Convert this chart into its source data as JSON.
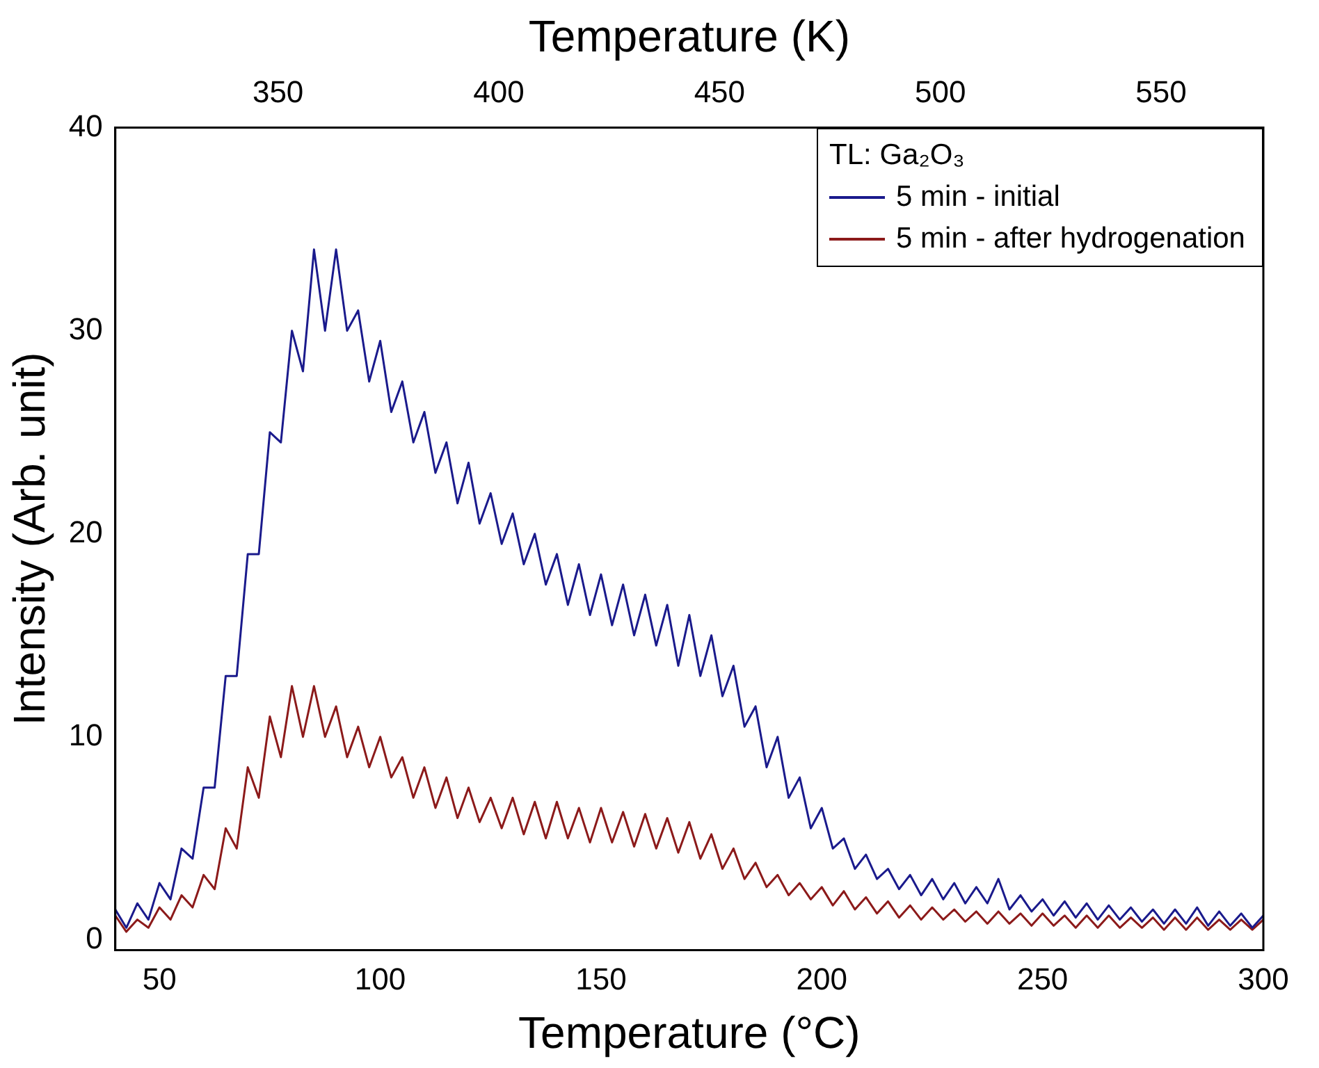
{
  "chart_data": {
    "type": "line",
    "xlabel": "Temperature (°C)",
    "x2label": "Temperature (K)",
    "ylabel": "Intensity (Arb. unit)",
    "legend_title": "TL: Ga₂O₃",
    "legend": "top right",
    "grid": false,
    "marker": "none",
    "line_style": "solid",
    "xlim": [
      40,
      300
    ],
    "xticks": [
      50,
      100,
      150,
      200,
      250,
      300
    ],
    "x2lim": [
      313.15,
      573.15
    ],
    "x2ticks": [
      350,
      400,
      450,
      500,
      550
    ],
    "ylim": [
      -0.5,
      40
    ],
    "yticks": [
      0,
      10,
      20,
      30,
      40
    ],
    "x": [
      40,
      42.5,
      45,
      47.5,
      50,
      52.5,
      55,
      57.5,
      60,
      62.5,
      65,
      67.5,
      70,
      72.5,
      75,
      77.5,
      80,
      82.5,
      85,
      87.5,
      90,
      92.5,
      95,
      97.5,
      100,
      102.5,
      105,
      107.5,
      110,
      112.5,
      115,
      117.5,
      120,
      122.5,
      125,
      127.5,
      130,
      132.5,
      135,
      137.5,
      140,
      142.5,
      145,
      147.5,
      150,
      152.5,
      155,
      157.5,
      160,
      162.5,
      165,
      167.5,
      170,
      172.5,
      175,
      177.5,
      180,
      182.5,
      185,
      187.5,
      190,
      192.5,
      195,
      197.5,
      200,
      202.5,
      205,
      207.5,
      210,
      212.5,
      215,
      217.5,
      220,
      222.5,
      225,
      227.5,
      230,
      232.5,
      235,
      237.5,
      240,
      242.5,
      245,
      247.5,
      250,
      252.5,
      255,
      257.5,
      260,
      262.5,
      265,
      267.5,
      270,
      272.5,
      275,
      277.5,
      280,
      282.5,
      285,
      287.5,
      290,
      292.5,
      295,
      297.5,
      300
    ],
    "series": [
      {
        "name": "5 min - initial",
        "color": "#1a1a8c",
        "values": [
          1.5,
          0.6,
          1.8,
          1.0,
          2.8,
          2.0,
          4.5,
          4.0,
          7.5,
          7.5,
          13,
          13,
          19,
          19,
          25,
          24.5,
          30,
          28,
          34,
          30,
          34,
          30,
          31,
          27.5,
          29.5,
          26,
          27.5,
          24.5,
          26,
          23,
          24.5,
          21.5,
          23.5,
          20.5,
          22,
          19.5,
          21,
          18.5,
          20,
          17.5,
          19,
          16.5,
          18.5,
          16,
          18,
          15.5,
          17.5,
          15,
          17,
          14.5,
          16.5,
          13.5,
          16,
          13,
          15,
          12,
          13.5,
          10.5,
          11.5,
          8.5,
          10,
          7,
          8,
          5.5,
          6.5,
          4.5,
          5,
          3.5,
          4.2,
          3,
          3.5,
          2.5,
          3.2,
          2.2,
          3,
          2,
          2.8,
          1.8,
          2.6,
          1.8,
          3,
          1.5,
          2.2,
          1.4,
          2,
          1.2,
          1.9,
          1.1,
          1.8,
          1,
          1.7,
          1,
          1.6,
          0.9,
          1.5,
          0.8,
          1.5,
          0.8,
          1.6,
          0.7,
          1.4,
          0.7,
          1.3,
          0.6,
          1.2
        ]
      },
      {
        "name": "5 min - after hydrogenation",
        "color": "#8c1a1a",
        "values": [
          1.2,
          0.4,
          1.0,
          0.6,
          1.6,
          1.0,
          2.2,
          1.6,
          3.2,
          2.5,
          5.5,
          4.5,
          8.5,
          7,
          11,
          9,
          12.5,
          10,
          12.5,
          10,
          11.5,
          9,
          10.5,
          8.5,
          10,
          8,
          9,
          7,
          8.5,
          6.5,
          8,
          6,
          7.5,
          5.8,
          7,
          5.5,
          7,
          5.2,
          6.8,
          5,
          6.8,
          5,
          6.5,
          4.8,
          6.5,
          4.8,
          6.3,
          4.6,
          6.2,
          4.5,
          6,
          4.3,
          5.8,
          4,
          5.2,
          3.5,
          4.5,
          3,
          3.8,
          2.6,
          3.2,
          2.2,
          2.8,
          2,
          2.6,
          1.7,
          2.4,
          1.5,
          2.1,
          1.3,
          1.9,
          1.1,
          1.7,
          1,
          1.6,
          1,
          1.5,
          0.9,
          1.4,
          0.8,
          1.4,
          0.8,
          1.3,
          0.7,
          1.3,
          0.7,
          1.2,
          0.6,
          1.2,
          0.6,
          1.2,
          0.6,
          1.1,
          0.6,
          1.1,
          0.5,
          1.1,
          0.5,
          1.1,
          0.5,
          1.0,
          0.5,
          1.0,
          0.5,
          1.0
        ]
      }
    ]
  }
}
